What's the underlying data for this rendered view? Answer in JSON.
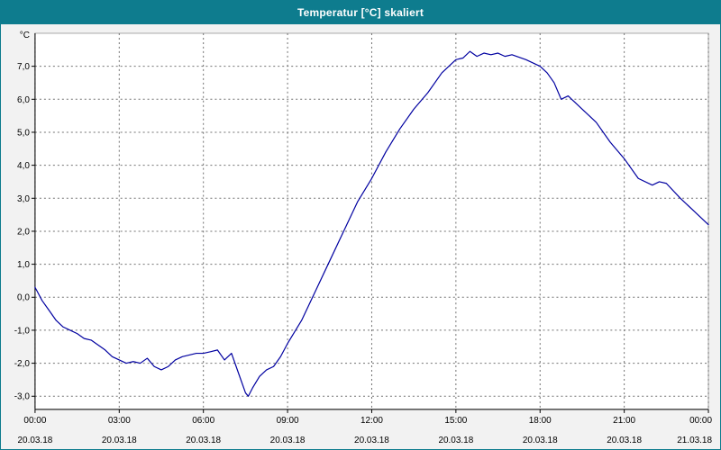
{
  "window": {
    "title": "Temperatur [°C] skaliert"
  },
  "chart_data": {
    "type": "line",
    "title": "Temperatur [°C] skaliert",
    "xlabel": "",
    "ylabel": "°C",
    "xlim": [
      0,
      24
    ],
    "ylim": [
      -3.4,
      8.0
    ],
    "grid": true,
    "legend": "none",
    "colors": {
      "line": "#0000a0",
      "grid": "#707070",
      "plot_bg": "#ffffff",
      "frame": "#a8a8a8",
      "axis": "#000000",
      "titlebar": "#0e7c8e",
      "window_bg": "#f2f2f2"
    },
    "y_ticks": [
      7,
      6,
      5,
      4,
      3,
      2,
      1,
      0,
      -1,
      -2,
      -3
    ],
    "y_tick_labels": [
      "7,0",
      "6,0",
      "5,0",
      "4,0",
      "3,0",
      "2,0",
      "1,0",
      "0,0",
      "-1,0",
      "-2,0",
      "-3,0"
    ],
    "x_ticks": [
      0,
      3,
      6,
      9,
      12,
      15,
      18,
      21,
      24
    ],
    "x_tick_labels": [
      "00:00",
      "03:00",
      "06:00",
      "09:00",
      "12:00",
      "15:00",
      "18:00",
      "21:00",
      "00:00"
    ],
    "x_tick_dates": [
      "20.03.18",
      "20.03.18",
      "20.03.18",
      "20.03.18",
      "20.03.18",
      "20.03.18",
      "20.03.18",
      "20.03.18",
      "21.03.18"
    ],
    "series": [
      {
        "name": "Temperatur",
        "x": [
          0,
          0.25,
          0.5,
          0.75,
          1,
          1.25,
          1.5,
          1.75,
          2,
          2.25,
          2.5,
          2.75,
          3,
          3.25,
          3.5,
          3.75,
          4,
          4.25,
          4.5,
          4.75,
          5,
          5.25,
          5.5,
          5.75,
          6,
          6.25,
          6.5,
          6.75,
          7,
          7.25,
          7.5,
          7.6,
          7.75,
          8,
          8.25,
          8.5,
          8.75,
          9,
          9.5,
          10,
          10.5,
          11,
          11.5,
          12,
          12.5,
          13,
          13.5,
          14,
          14.5,
          15,
          15.25,
          15.5,
          15.75,
          16,
          16.25,
          16.5,
          16.75,
          17,
          17.5,
          18,
          18.25,
          18.5,
          18.75,
          19,
          19.25,
          19.5,
          20,
          20.5,
          21,
          21.5,
          22,
          22.25,
          22.5,
          23,
          23.5,
          24
        ],
        "y": [
          0.3,
          -0.1,
          -0.4,
          -0.7,
          -0.9,
          -1.0,
          -1.1,
          -1.25,
          -1.3,
          -1.45,
          -1.6,
          -1.8,
          -1.9,
          -2.0,
          -1.95,
          -2.0,
          -1.85,
          -2.1,
          -2.2,
          -2.1,
          -1.9,
          -1.8,
          -1.75,
          -1.7,
          -1.7,
          -1.65,
          -1.6,
          -1.9,
          -1.7,
          -2.3,
          -2.9,
          -3.0,
          -2.75,
          -2.4,
          -2.2,
          -2.1,
          -1.8,
          -1.4,
          -0.7,
          0.2,
          1.1,
          2.0,
          2.9,
          3.6,
          4.4,
          5.1,
          5.7,
          6.2,
          6.8,
          7.2,
          7.25,
          7.45,
          7.3,
          7.4,
          7.35,
          7.4,
          7.3,
          7.35,
          7.2,
          7.0,
          6.8,
          6.5,
          6.0,
          6.1,
          5.9,
          5.7,
          5.3,
          4.7,
          4.2,
          3.6,
          3.4,
          3.5,
          3.45,
          3.0,
          2.6,
          2.2
        ]
      }
    ]
  }
}
